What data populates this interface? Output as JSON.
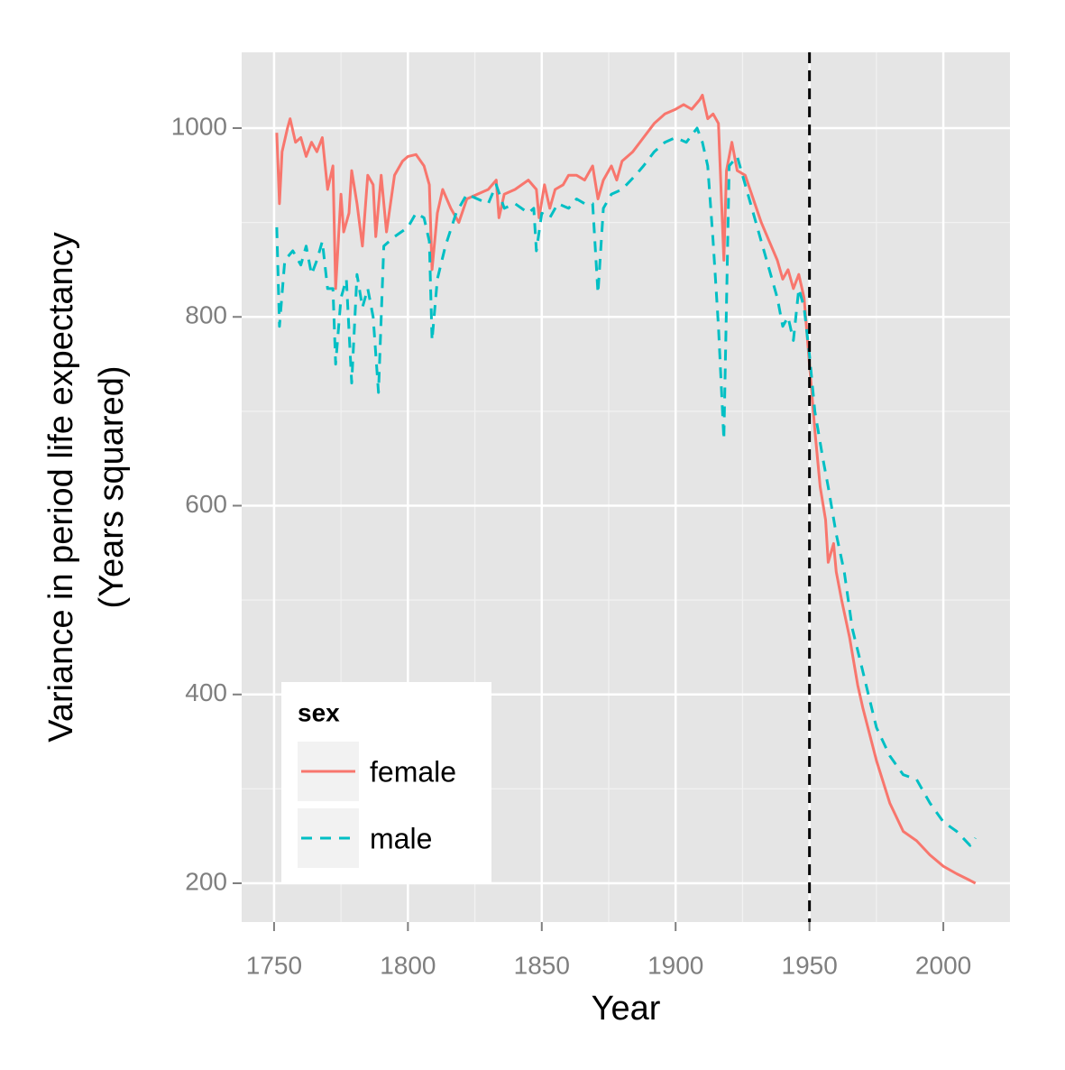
{
  "chart_data": {
    "type": "line",
    "xlabel": "Year",
    "ylabel": [
      "Variance in period life expectancy",
      "(Years squared)"
    ],
    "xlim": [
      1737.9,
      2024.9
    ],
    "ylim": [
      158.9,
      1080.3
    ],
    "xticks": [
      1750,
      1800,
      1850,
      1900,
      1950,
      2000
    ],
    "yticks": [
      200,
      400,
      600,
      800,
      1000
    ],
    "x_minor_grid": [
      1775,
      1825,
      1875,
      1925,
      1975,
      2025
    ],
    "y_minor_grid": [
      300,
      500,
      700,
      900
    ],
    "grid": true,
    "vline": 1950,
    "legend_title": "sex",
    "legend_position": "bottom-left",
    "series": [
      {
        "name": "female",
        "color": "#f8766d",
        "dash": "solid",
        "x": [
          1751,
          1752,
          1753,
          1755,
          1756,
          1758,
          1760,
          1762,
          1764,
          1766,
          1768,
          1770,
          1772,
          1773,
          1775,
          1776,
          1778,
          1779,
          1781,
          1783,
          1785,
          1787,
          1788,
          1790,
          1792,
          1795,
          1798,
          1800,
          1803,
          1806,
          1808,
          1809,
          1811,
          1813,
          1816,
          1819,
          1822,
          1826,
          1830,
          1833,
          1834,
          1836,
          1840,
          1845,
          1848,
          1849,
          1851,
          1853,
          1855,
          1858,
          1860,
          1863,
          1866,
          1869,
          1871,
          1873,
          1876,
          1878,
          1880,
          1884,
          1888,
          1892,
          1896,
          1900,
          1903,
          1906,
          1909,
          1910,
          1912,
          1914,
          1916,
          1918,
          1919,
          1921,
          1923,
          1926,
          1929,
          1932,
          1935,
          1938,
          1940,
          1942,
          1944,
          1946,
          1948,
          1950,
          1952,
          1954,
          1956,
          1957,
          1959,
          1960,
          1962,
          1965,
          1968,
          1970,
          1975,
          1980,
          1985,
          1990,
          1995,
          2000,
          2005,
          2010,
          2012
        ],
        "values": [
          995,
          920,
          975,
          1000,
          1010,
          985,
          990,
          970,
          985,
          975,
          990,
          935,
          960,
          830,
          930,
          890,
          910,
          955,
          920,
          875,
          950,
          940,
          885,
          950,
          890,
          950,
          965,
          970,
          972,
          960,
          940,
          850,
          910,
          935,
          915,
          900,
          925,
          930,
          935,
          945,
          905,
          930,
          935,
          945,
          935,
          905,
          940,
          915,
          935,
          940,
          950,
          950,
          945,
          960,
          925,
          945,
          960,
          945,
          965,
          975,
          990,
          1005,
          1015,
          1020,
          1025,
          1020,
          1030,
          1035,
          1010,
          1015,
          1005,
          860,
          955,
          985,
          955,
          950,
          925,
          900,
          880,
          860,
          840,
          850,
          830,
          845,
          820,
          750,
          680,
          620,
          585,
          540,
          560,
          530,
          500,
          460,
          410,
          385,
          330,
          285,
          255,
          245,
          230,
          218,
          210,
          203,
          200
        ]
      },
      {
        "name": "male",
        "color": "#00bfc4",
        "dash": "dashed",
        "x": [
          1751,
          1752,
          1754,
          1757,
          1760,
          1762,
          1764,
          1766,
          1768,
          1770,
          1772,
          1773,
          1775,
          1777,
          1779,
          1781,
          1783,
          1785,
          1787,
          1789,
          1791,
          1795,
          1800,
          1803,
          1806,
          1808,
          1809,
          1811,
          1814,
          1818,
          1822,
          1826,
          1830,
          1833,
          1836,
          1840,
          1845,
          1847,
          1848,
          1850,
          1853,
          1856,
          1860,
          1863,
          1866,
          1869,
          1871,
          1873,
          1876,
          1880,
          1885,
          1888,
          1892,
          1896,
          1900,
          1904,
          1908,
          1910,
          1912,
          1914,
          1916,
          1918,
          1920,
          1923,
          1926,
          1929,
          1932,
          1935,
          1938,
          1940,
          1942,
          1944,
          1946,
          1948,
          1950,
          1952,
          1955,
          1957,
          1960,
          1963,
          1966,
          1969,
          1972,
          1975,
          1980,
          1985,
          1990,
          1995,
          2000,
          2005,
          2010,
          2012
        ],
        "values": [
          895,
          790,
          860,
          870,
          855,
          875,
          845,
          860,
          880,
          830,
          830,
          750,
          820,
          840,
          730,
          845,
          810,
          830,
          800,
          720,
          875,
          885,
          895,
          910,
          905,
          880,
          775,
          840,
          875,
          910,
          930,
          925,
          920,
          940,
          915,
          920,
          910,
          915,
          870,
          910,
          905,
          920,
          915,
          925,
          920,
          920,
          825,
          915,
          930,
          935,
          950,
          960,
          975,
          985,
          990,
          985,
          1000,
          985,
          960,
          880,
          790,
          670,
          960,
          970,
          940,
          910,
          880,
          850,
          820,
          790,
          800,
          775,
          830,
          810,
          760,
          700,
          650,
          620,
          570,
          530,
          470,
          435,
          400,
          365,
          335,
          315,
          310,
          285,
          265,
          255,
          240,
          248
        ]
      }
    ]
  }
}
